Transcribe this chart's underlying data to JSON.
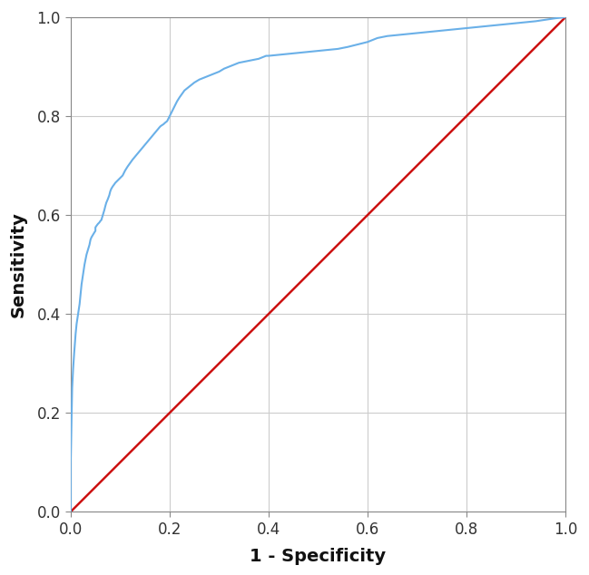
{
  "title": "",
  "xlabel": "1 - Specificity",
  "ylabel": "Sensitivity",
  "xlim": [
    0.0,
    1.0
  ],
  "ylim": [
    0.0,
    1.0
  ],
  "xticks": [
    0.0,
    0.2,
    0.4,
    0.6,
    0.8,
    1.0
  ],
  "yticks": [
    0.0,
    0.2,
    0.4,
    0.6,
    0.8,
    1.0
  ],
  "roc_color": "#6ab0e8",
  "diagonal_color": "#cc1111",
  "grid_color": "#cccccc",
  "background_color": "#ffffff",
  "roc_linewidth": 1.5,
  "diagonal_linewidth": 1.8,
  "roc_x": [
    0.0,
    0.0,
    0.001,
    0.002,
    0.003,
    0.005,
    0.007,
    0.01,
    0.012,
    0.015,
    0.018,
    0.02,
    0.022,
    0.025,
    0.028,
    0.03,
    0.032,
    0.035,
    0.038,
    0.04,
    0.042,
    0.045,
    0.048,
    0.05,
    0.05,
    0.052,
    0.055,
    0.058,
    0.06,
    0.062,
    0.065,
    0.068,
    0.07,
    0.072,
    0.075,
    0.078,
    0.08,
    0.082,
    0.085,
    0.088,
    0.09,
    0.095,
    0.1,
    0.105,
    0.11,
    0.115,
    0.12,
    0.125,
    0.13,
    0.135,
    0.14,
    0.145,
    0.15,
    0.155,
    0.16,
    0.165,
    0.17,
    0.175,
    0.18,
    0.182,
    0.185,
    0.188,
    0.19,
    0.195,
    0.2,
    0.205,
    0.21,
    0.215,
    0.22,
    0.225,
    0.23,
    0.24,
    0.25,
    0.26,
    0.27,
    0.28,
    0.29,
    0.3,
    0.31,
    0.32,
    0.33,
    0.34,
    0.35,
    0.36,
    0.37,
    0.38,
    0.385,
    0.39,
    0.395,
    0.4,
    0.41,
    0.42,
    0.43,
    0.44,
    0.45,
    0.46,
    0.48,
    0.5,
    0.52,
    0.54,
    0.56,
    0.58,
    0.6,
    0.62,
    0.64,
    0.66,
    0.68,
    0.7,
    0.72,
    0.74,
    0.76,
    0.78,
    0.8,
    0.82,
    0.84,
    0.86,
    0.88,
    0.9,
    0.92,
    0.94,
    0.96,
    0.98,
    1.0
  ],
  "roc_y": [
    0.0,
    0.1,
    0.15,
    0.2,
    0.25,
    0.29,
    0.32,
    0.36,
    0.38,
    0.4,
    0.42,
    0.44,
    0.46,
    0.48,
    0.5,
    0.51,
    0.52,
    0.53,
    0.54,
    0.55,
    0.555,
    0.56,
    0.565,
    0.568,
    0.575,
    0.578,
    0.582,
    0.585,
    0.588,
    0.59,
    0.6,
    0.61,
    0.618,
    0.625,
    0.632,
    0.64,
    0.648,
    0.653,
    0.658,
    0.662,
    0.665,
    0.67,
    0.675,
    0.68,
    0.69,
    0.698,
    0.705,
    0.712,
    0.718,
    0.724,
    0.73,
    0.736,
    0.742,
    0.748,
    0.754,
    0.76,
    0.766,
    0.772,
    0.778,
    0.78,
    0.782,
    0.784,
    0.786,
    0.79,
    0.8,
    0.81,
    0.82,
    0.83,
    0.838,
    0.845,
    0.852,
    0.86,
    0.868,
    0.874,
    0.878,
    0.882,
    0.886,
    0.89,
    0.896,
    0.9,
    0.904,
    0.908,
    0.91,
    0.912,
    0.914,
    0.916,
    0.918,
    0.92,
    0.922,
    0.922,
    0.923,
    0.924,
    0.925,
    0.926,
    0.927,
    0.928,
    0.93,
    0.932,
    0.934,
    0.936,
    0.94,
    0.945,
    0.95,
    0.958,
    0.962,
    0.964,
    0.966,
    0.968,
    0.97,
    0.972,
    0.974,
    0.976,
    0.978,
    0.98,
    0.982,
    0.984,
    0.986,
    0.988,
    0.99,
    0.992,
    0.995,
    0.998,
    1.0
  ]
}
